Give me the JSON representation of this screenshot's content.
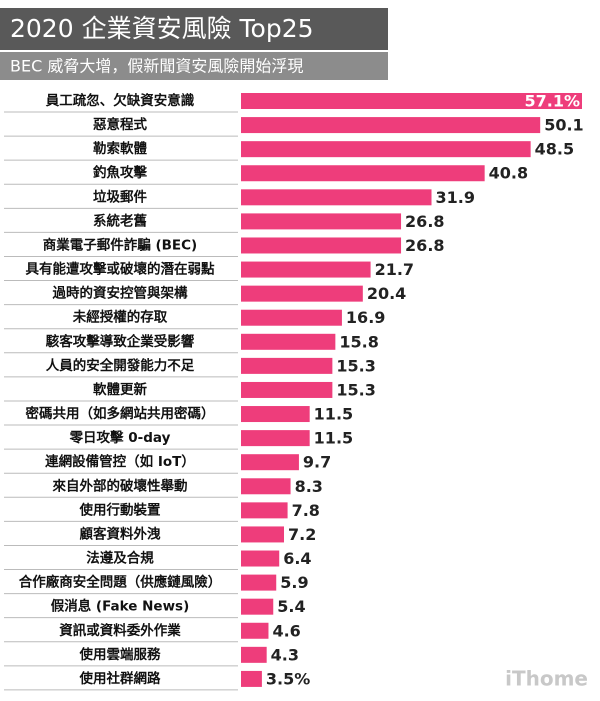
{
  "chart_data": {
    "type": "bar",
    "orientation": "horizontal",
    "title": "2020 企業資安風險 Top25",
    "subtitle": "BEC 威脅大增，假新聞資安風險開始浮現",
    "categories": [
      "員工疏忽、欠缺資安意識",
      "惡意程式",
      "勒索軟體",
      "釣魚攻擊",
      "垃圾郵件",
      "系統老舊",
      "商業電子郵件詐騙 (BEC)",
      "具有能遭攻擊或破壞的潛在弱點",
      "過時的資安控管與架構",
      "未經授權的存取",
      "駭客攻擊導致企業受影響",
      "人員的安全開發能力不足",
      "軟體更新",
      "密碼共用（如多網站共用密碼）",
      "零日攻擊 0-day",
      "連網設備管控（如 IoT）",
      "來自外部的破壞性舉動",
      "使用行動裝置",
      "顧客資料外洩",
      "法遵及合規",
      "合作廠商安全問題（供應鏈風險）",
      "假消息 (Fake News)",
      "資訊或資料委外作業",
      "使用雲端服務",
      "使用社群網路"
    ],
    "values": [
      57.1,
      50.1,
      48.5,
      40.8,
      31.9,
      26.8,
      26.8,
      21.7,
      20.4,
      16.9,
      15.8,
      15.3,
      15.3,
      11.5,
      11.5,
      9.7,
      8.3,
      7.8,
      7.2,
      6.4,
      5.9,
      5.4,
      4.6,
      4.3,
      3.5
    ],
    "value_labels": [
      "57.1%",
      "50.1",
      "48.5",
      "40.8",
      "31.9",
      "26.8",
      "26.8",
      "21.7",
      "20.4",
      "16.9",
      "15.8",
      "15.3",
      "15.3",
      "11.5",
      "11.5",
      "9.7",
      "8.3",
      "7.8",
      "7.2",
      "6.4",
      "5.9",
      "5.4",
      "4.6",
      "4.3",
      "3.5%"
    ],
    "color": "#ee3d7b",
    "watermark": "iThome"
  }
}
